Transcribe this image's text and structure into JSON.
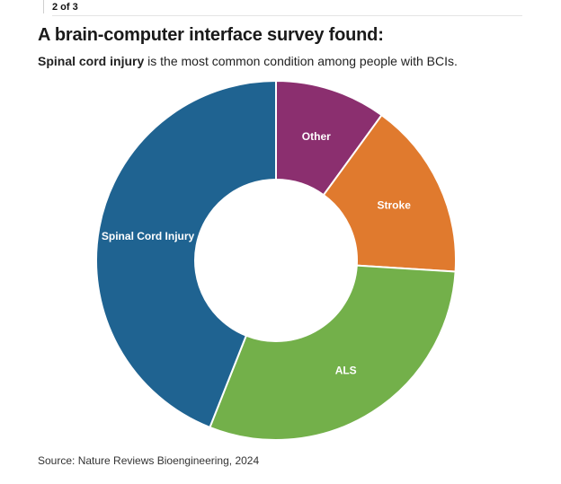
{
  "header": {
    "counter": "2 of 3"
  },
  "title": "A brain-computer interface survey found:",
  "subtitle": {
    "emphasis": "Spinal cord injury",
    "rest": " is the most common condition among people with BCIs."
  },
  "source": "Source: Nature Reviews Bioengineering, 2024",
  "chart_data": {
    "type": "pie",
    "donut": true,
    "title": "A brain-computer interface survey found:",
    "categories": [
      "Other",
      "Stroke",
      "ALS",
      "Spinal Cord Injury"
    ],
    "values": [
      10,
      16,
      30,
      44
    ],
    "colors": [
      "#8b2f6f",
      "#e07a2e",
      "#73b04a",
      "#1f6391"
    ],
    "start_angle_deg": 0,
    "direction": "clockwise",
    "legend": "none"
  }
}
